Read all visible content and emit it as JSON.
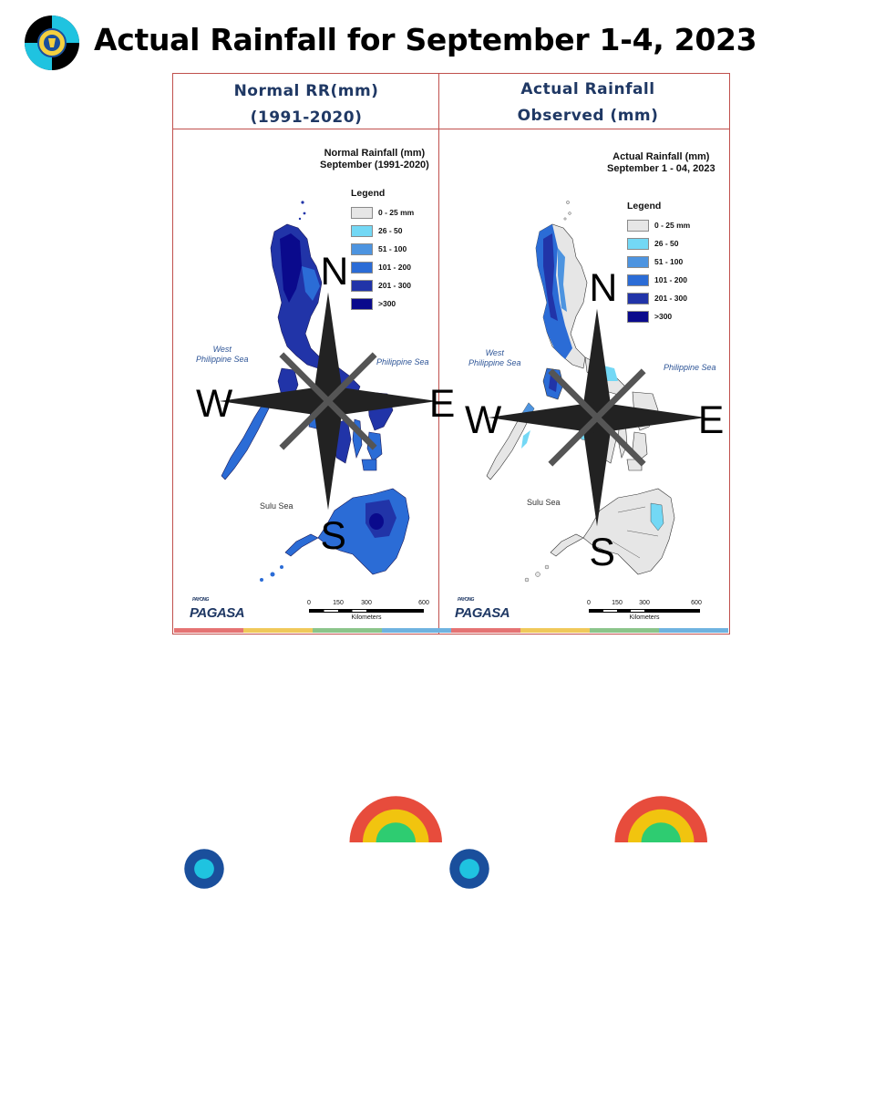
{
  "slide": {
    "title": "Actual Rainfall for September 1-4, 2023"
  },
  "columns": [
    {
      "header_line1": "Normal RR(mm)",
      "header_line2": "(1991-2020)",
      "map_title_line1": "Normal Rainfall (mm)",
      "map_title_line2": "September (1991-2020)"
    },
    {
      "header_line1": "Actual Rainfall",
      "header_line2": "Observed (mm)",
      "map_title_line1": "Actual Rainfall (mm)",
      "map_title_line2": "September 1 - 04, 2023"
    }
  ],
  "legend": {
    "title": "Legend",
    "classes_normal": [
      {
        "label": "0 - 25 mm",
        "color": "#e6e6e6"
      },
      {
        "label": "26 - 50",
        "color": "#73d8f5"
      },
      {
        "label": "51 - 100",
        "color": "#4d94e0"
      },
      {
        "label": "101 - 200",
        "color": "#2b6cd6"
      },
      {
        "label": "201 - 300",
        "color": "#2134a8"
      },
      {
        "label": ">300",
        "color": "#0a0a8c"
      }
    ],
    "classes_actual": [
      {
        "label": "0 - 25 mm",
        "color": "#e6e6e6"
      },
      {
        "label": "26 - 50",
        "color": "#73d8f5"
      },
      {
        "label": "51 - 100",
        "color": "#4d94e0"
      },
      {
        "label": "101 - 200",
        "color": "#2b6cd6"
      },
      {
        "label": "201 - 300",
        "color": "#2134a8"
      },
      {
        "label": ">300",
        "color": "#0a0a8c"
      }
    ]
  },
  "sea_labels": {
    "west_line1": "West",
    "west_line2": "Philippine Sea",
    "east": "Philippine Sea",
    "sulu": "Sulu Sea"
  },
  "compass": {
    "n": "N",
    "s": "S",
    "e": "E",
    "w": "W"
  },
  "scalebar": {
    "ticks": [
      "0",
      "150",
      "300",
      "600"
    ],
    "unit": "Kilometers"
  },
  "agency": {
    "name": "PAGASA",
    "small_text": "PAYONG"
  },
  "colors": {
    "header_text": "#1f3864",
    "border": "#c0504d",
    "sea_label": "#2e5597"
  }
}
